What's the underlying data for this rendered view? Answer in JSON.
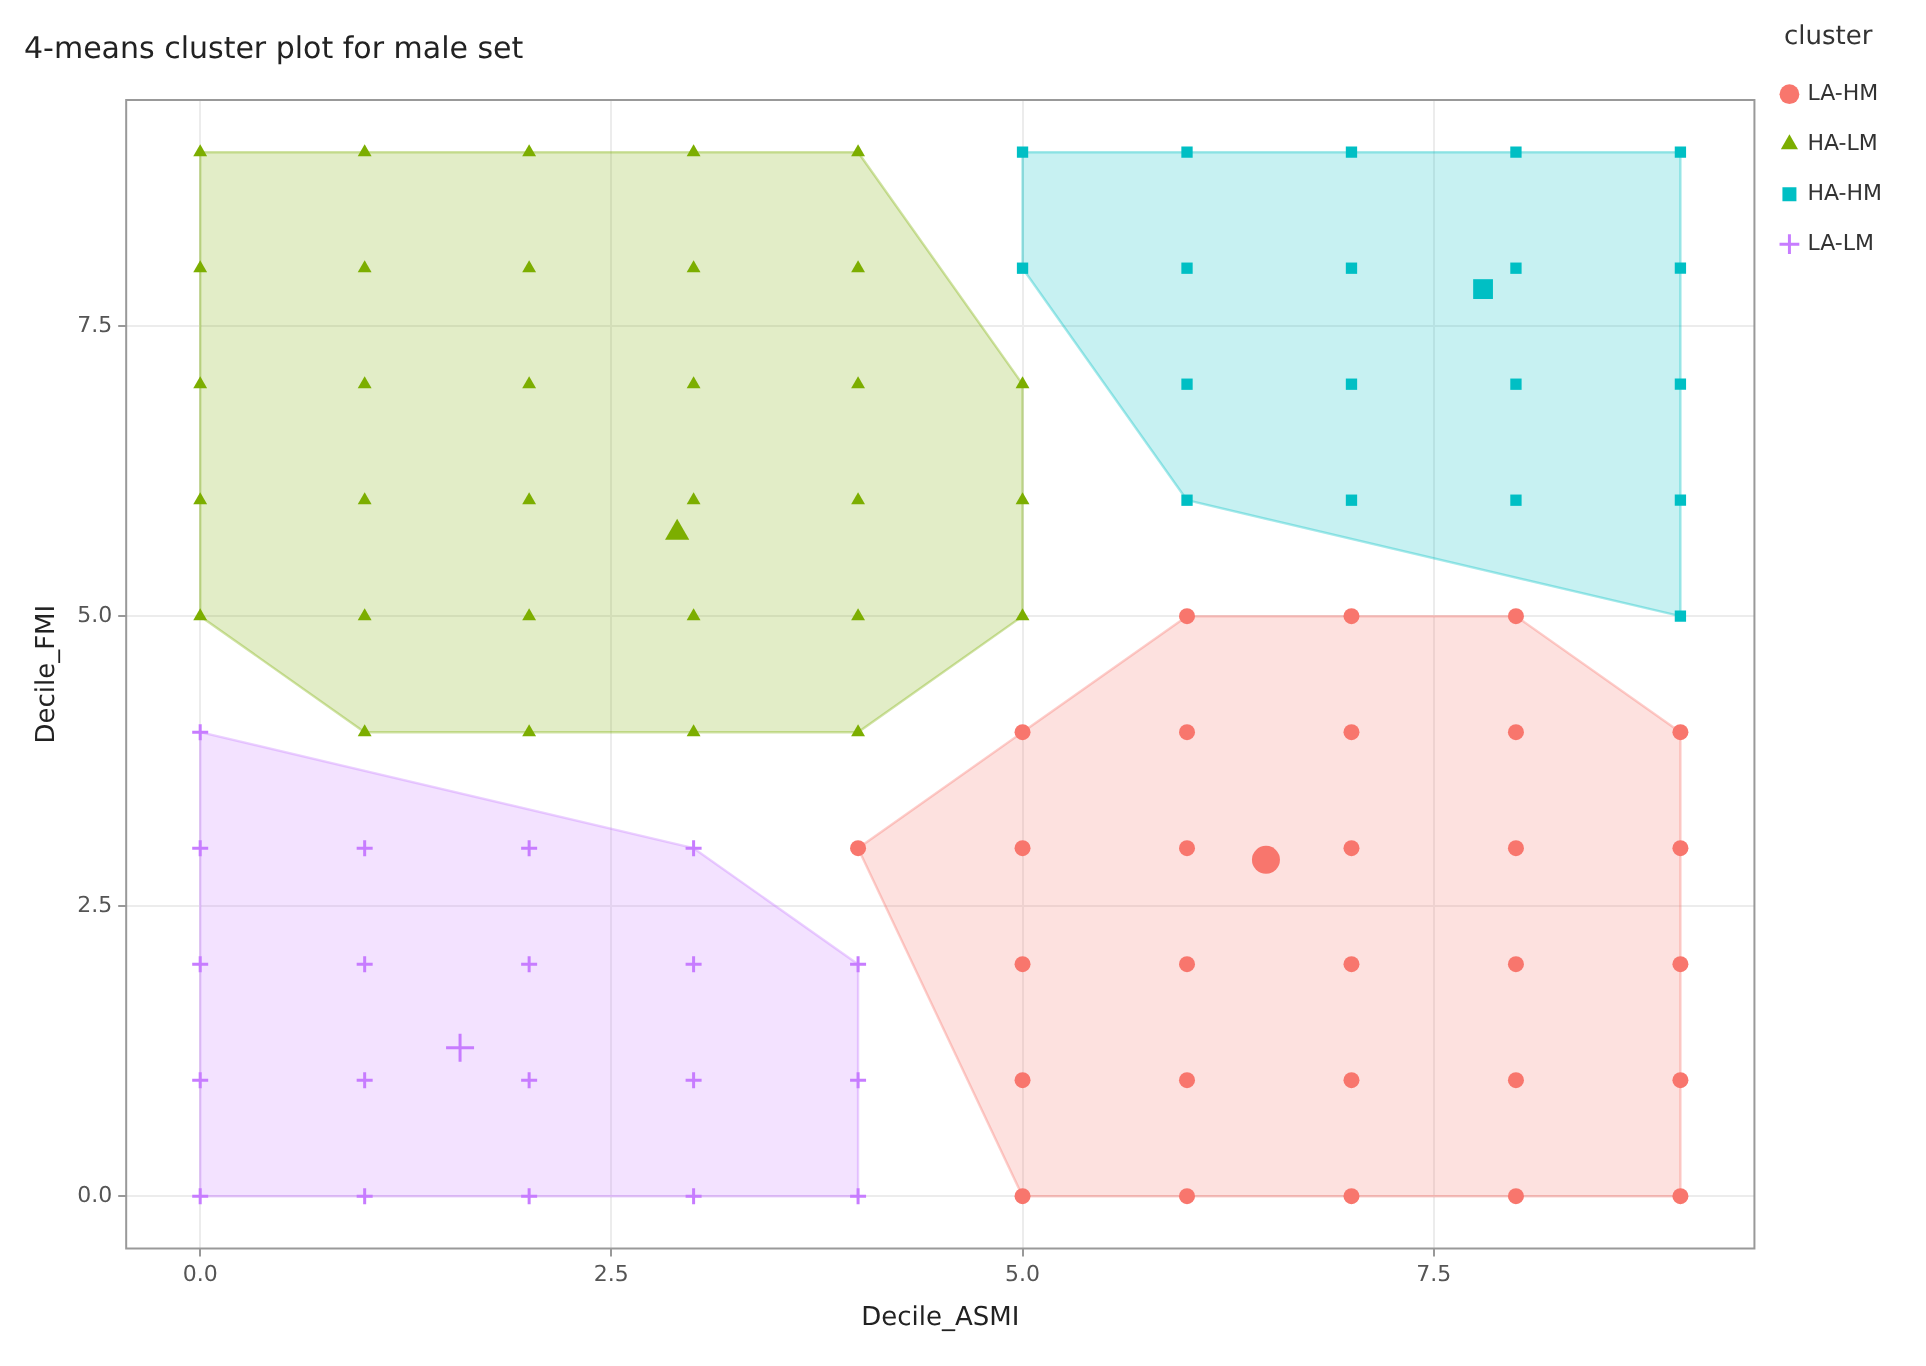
{
  "chart_data": {
    "type": "scatter",
    "title": "4-means cluster plot for male set",
    "xlabel": "Decile_ASMI",
    "ylabel": "Decile_FMI",
    "legend_title": "cluster",
    "legend": "right",
    "grid": true,
    "xlim": [
      -0.45,
      9.45
    ],
    "ylim": [
      -0.45,
      9.45
    ],
    "xticks": [
      {
        "value": 0,
        "label": "0.0"
      },
      {
        "value": 2.5,
        "label": "2.5"
      },
      {
        "value": 5,
        "label": "5.0"
      },
      {
        "value": 7.5,
        "label": "7.5"
      }
    ],
    "yticks": [
      {
        "value": 0,
        "label": "0.0"
      },
      {
        "value": 2.5,
        "label": "2.5"
      },
      {
        "value": 5,
        "label": "5.0"
      },
      {
        "value": 7.5,
        "label": "7.5"
      }
    ],
    "series": [
      {
        "name": "LA-HM",
        "color": "#f8766d",
        "marker": "circle",
        "x": [
          4,
          5,
          5,
          5,
          5,
          5,
          6,
          6,
          6,
          6,
          6,
          6,
          7,
          7,
          7,
          7,
          7,
          7,
          8,
          8,
          8,
          8,
          8,
          8,
          9,
          9,
          9,
          9,
          9
        ],
        "values": [
          3,
          0,
          1,
          2,
          3,
          4,
          0,
          1,
          2,
          3,
          4,
          5,
          0,
          1,
          2,
          3,
          4,
          5,
          0,
          1,
          2,
          3,
          4,
          5,
          0,
          1,
          2,
          3,
          4
        ]
      },
      {
        "name": "HA-LM",
        "color": "#7cae00",
        "marker": "triangle",
        "x": [
          0,
          0,
          0,
          0,
          0,
          1,
          1,
          1,
          1,
          1,
          1,
          2,
          2,
          2,
          2,
          2,
          2,
          3,
          3,
          3,
          3,
          3,
          3,
          4,
          4,
          4,
          4,
          4,
          4,
          5,
          5,
          5
        ],
        "values": [
          5,
          6,
          7,
          8,
          9,
          4,
          5,
          6,
          7,
          8,
          9,
          4,
          5,
          6,
          7,
          8,
          9,
          4,
          5,
          6,
          7,
          8,
          9,
          4,
          5,
          6,
          7,
          8,
          9,
          5,
          6,
          7
        ]
      },
      {
        "name": "HA-HM",
        "color": "#00bfc4",
        "marker": "square",
        "x": [
          5,
          5,
          6,
          6,
          6,
          6,
          7,
          7,
          7,
          7,
          8,
          8,
          8,
          8,
          9,
          9,
          9,
          9,
          9
        ],
        "values": [
          8,
          9,
          6,
          7,
          8,
          9,
          6,
          7,
          8,
          9,
          6,
          7,
          8,
          9,
          5,
          6,
          7,
          8,
          9
        ]
      },
      {
        "name": "LA-LM",
        "color": "#c77cff",
        "marker": "cross",
        "x": [
          0,
          0,
          0,
          0,
          0,
          1,
          1,
          1,
          1,
          2,
          2,
          2,
          2,
          3,
          3,
          3,
          3,
          4,
          4,
          4
        ],
        "values": [
          0,
          1,
          2,
          3,
          4,
          0,
          1,
          2,
          3,
          0,
          1,
          2,
          3,
          0,
          1,
          2,
          3,
          0,
          1,
          2
        ]
      },
      {
        "type": "area",
        "color": "#f8766d",
        "x": [
          4,
          6,
          8,
          9,
          9,
          5,
          4
        ],
        "values": [
          3,
          5,
          5,
          4,
          0,
          0,
          3
        ]
      },
      {
        "type": "area",
        "color": "#7cae00",
        "x": [
          0,
          0,
          4,
          5,
          5,
          4,
          1,
          0
        ],
        "values": [
          5,
          9,
          9,
          7,
          5,
          4,
          4,
          5
        ]
      },
      {
        "type": "area",
        "color": "#00bfc4",
        "x": [
          5,
          9,
          9,
          6,
          5,
          5
        ],
        "values": [
          9,
          9,
          5,
          6,
          8,
          9
        ]
      },
      {
        "type": "area",
        "color": "#c77cff",
        "x": [
          0,
          0,
          3,
          4,
          4,
          0
        ],
        "values": [
          0,
          4,
          3,
          2,
          0,
          0
        ]
      },
      {
        "color": "#f8766d",
        "marker": "circle",
        "x": [
          6.48
        ],
        "values": [
          2.9
        ]
      },
      {
        "color": "#7cae00",
        "marker": "triangle",
        "x": [
          2.9
        ],
        "values": [
          5.72
        ]
      },
      {
        "color": "#00bfc4",
        "marker": "square",
        "x": [
          7.8
        ],
        "values": [
          7.82
        ]
      },
      {
        "color": "#c77cff",
        "marker": "cross",
        "x": [
          1.58
        ],
        "values": [
          1.28
        ]
      }
    ]
  }
}
